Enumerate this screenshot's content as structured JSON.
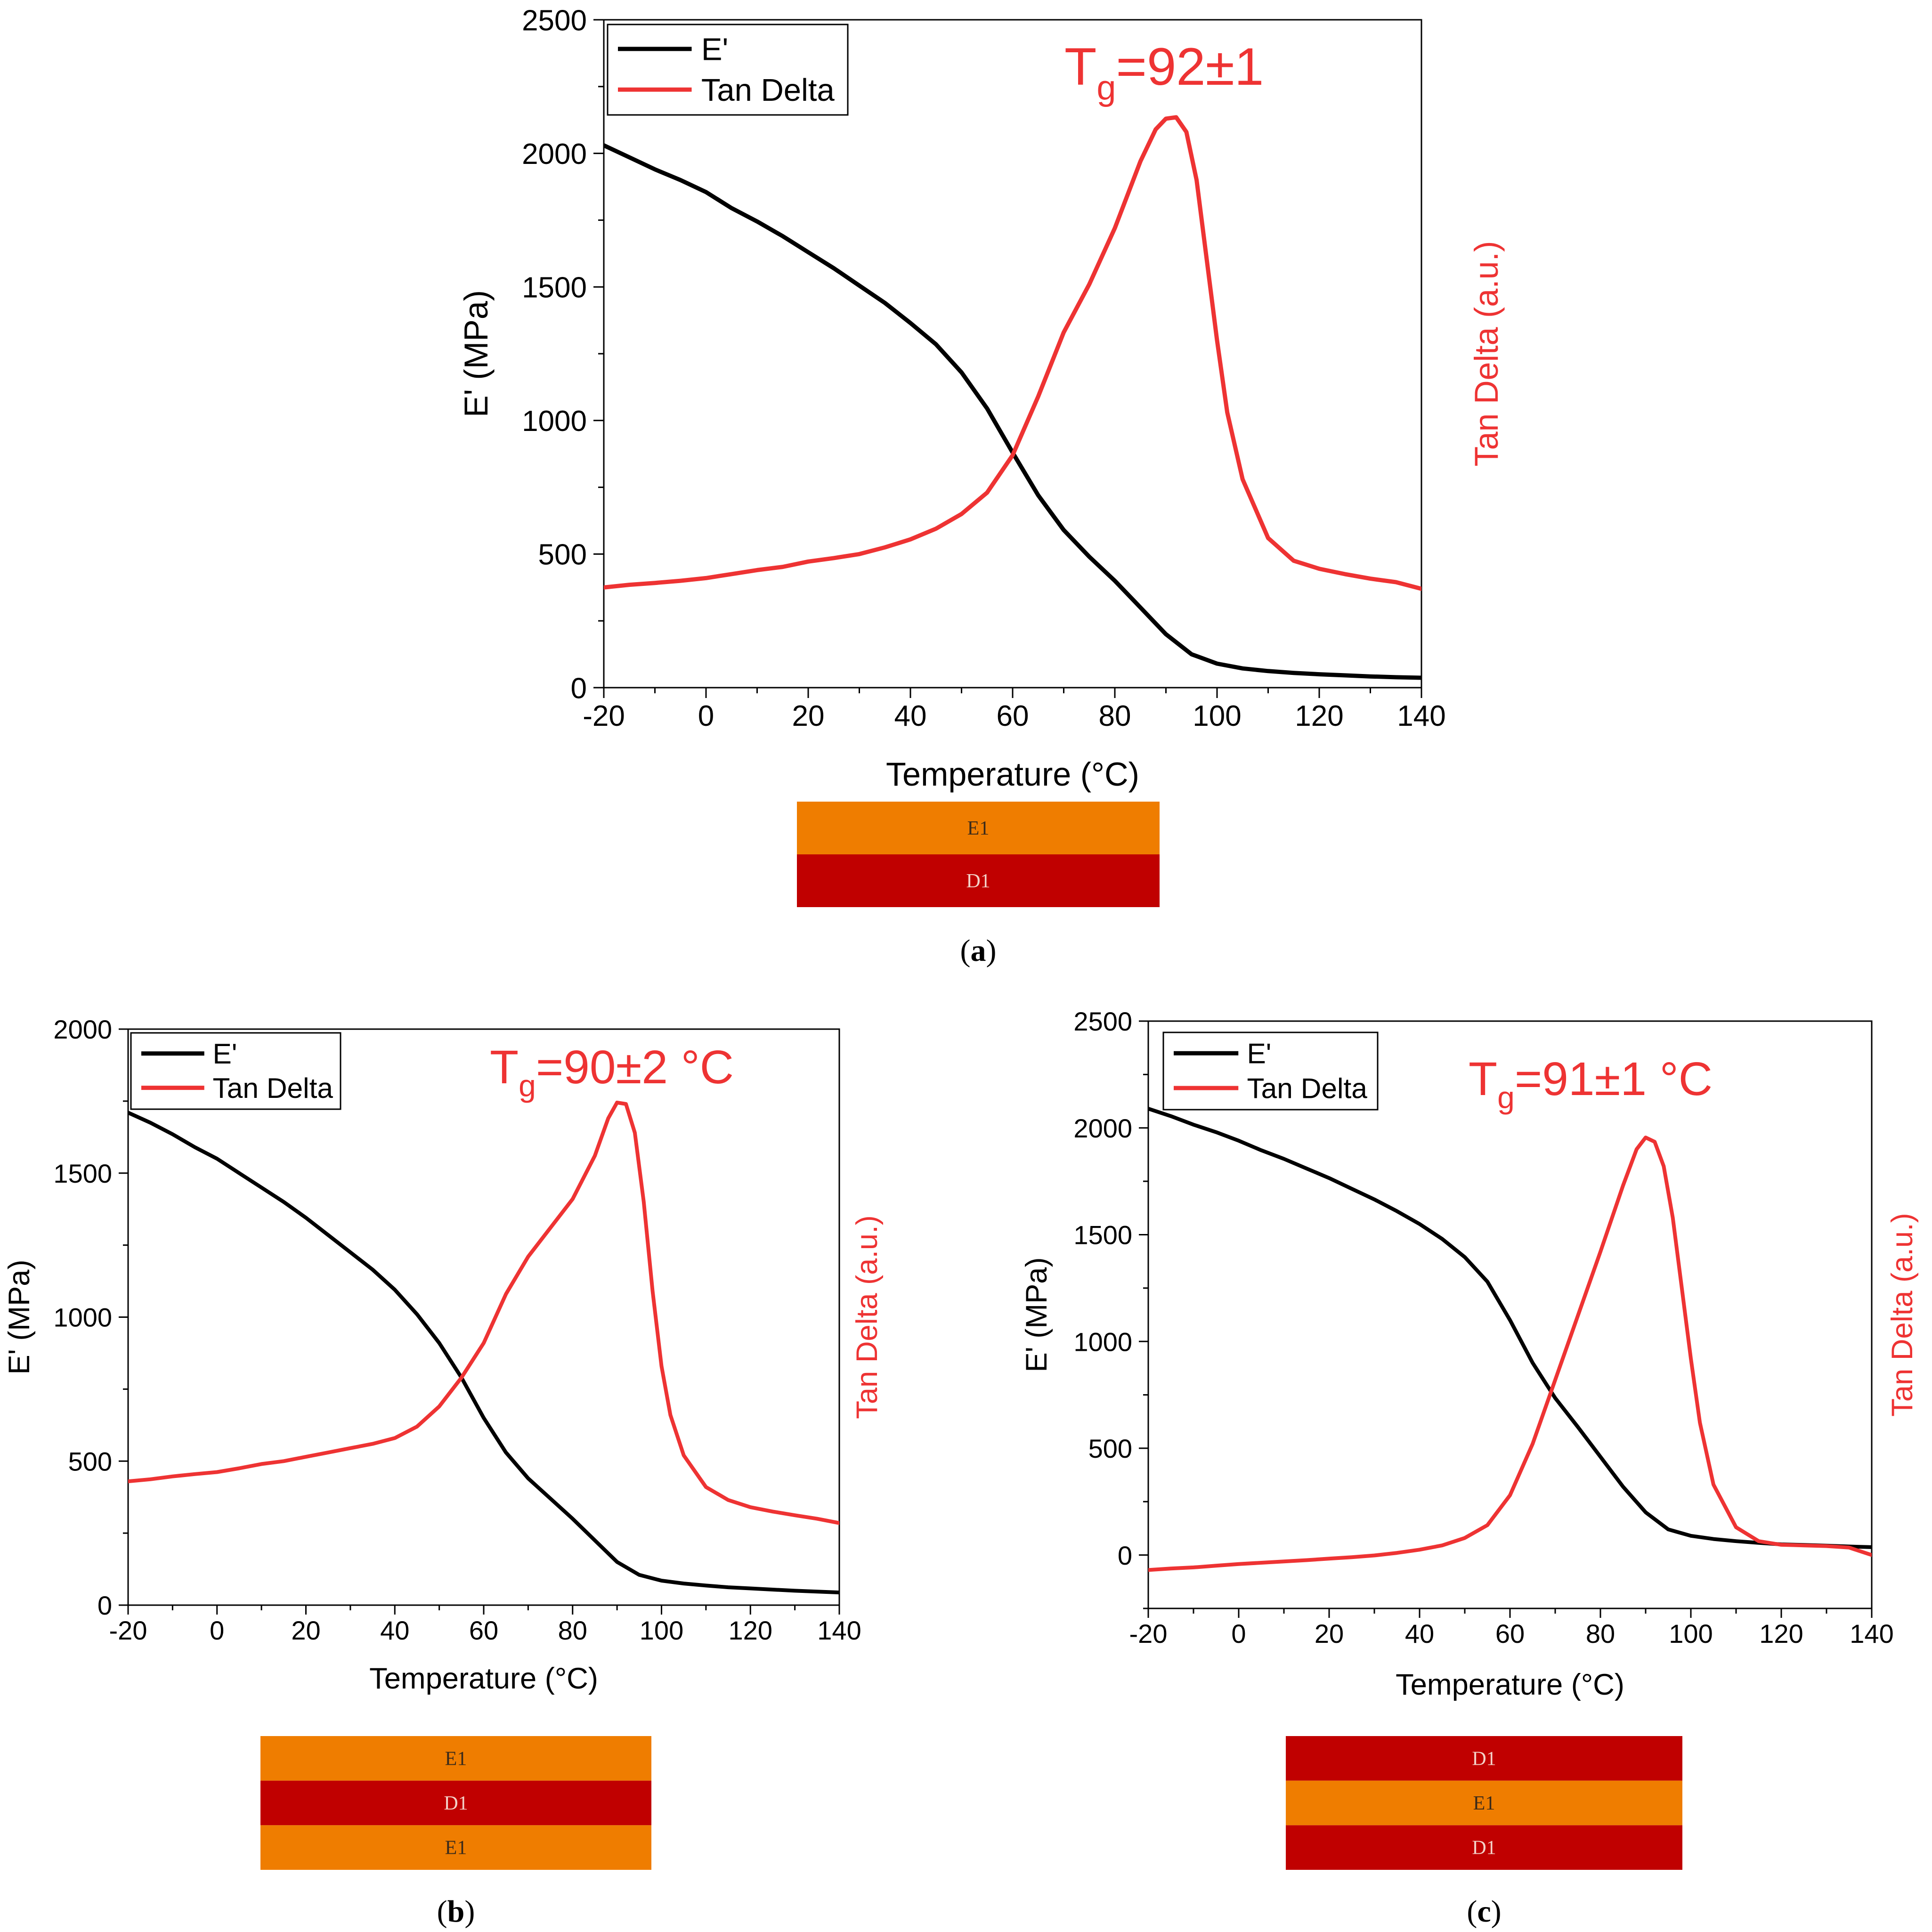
{
  "colors": {
    "e_prime": "#000000",
    "tan_delta": "#ee3333",
    "layer_E1": "#ef7d00",
    "layer_D1": "#c00000",
    "layer_E1_text": "#3a2a1a",
    "layer_D1_text": "#f3d2c8"
  },
  "layer_labels": {
    "E1": "E1",
    "D1": "D1"
  },
  "chart_data": [
    {
      "id": "a",
      "type": "line",
      "caption_letter": "a",
      "xlabel": "Temperature (°C)",
      "ylabel": "E' (MPa)",
      "y2label": "Tan Delta (a.u.)",
      "annotation": {
        "base": "T",
        "sub": "g",
        "rest": "=92±1"
      },
      "xlim": [
        -20,
        140
      ],
      "ylim": [
        0,
        2500
      ],
      "xticks": [
        -20,
        0,
        20,
        40,
        60,
        80,
        100,
        120,
        140
      ],
      "yticks": [
        0,
        500,
        1000,
        1500,
        2000,
        2500
      ],
      "tand_scale": [
        0,
        2500
      ],
      "legend": [
        "E'",
        "Tan Delta"
      ],
      "legend_position": "top-left",
      "layers": [
        "E1",
        "D1"
      ],
      "series": [
        {
          "name": "E'",
          "x": [
            -20,
            -15,
            -10,
            -5,
            0,
            5,
            10,
            15,
            20,
            25,
            30,
            35,
            40,
            45,
            50,
            55,
            60,
            65,
            70,
            75,
            80,
            85,
            90,
            95,
            100,
            105,
            110,
            115,
            120,
            125,
            130,
            135,
            140
          ],
          "values": [
            2030,
            1985,
            1940,
            1900,
            1855,
            1795,
            1745,
            1690,
            1630,
            1570,
            1505,
            1440,
            1365,
            1285,
            1180,
            1045,
            880,
            720,
            590,
            490,
            400,
            300,
            200,
            125,
            90,
            72,
            62,
            55,
            50,
            46,
            42,
            39,
            37
          ]
        },
        {
          "name": "Tan Delta",
          "x": [
            -20,
            -15,
            -10,
            -5,
            0,
            5,
            10,
            15,
            20,
            25,
            30,
            35,
            40,
            45,
            50,
            55,
            60,
            65,
            70,
            75,
            80,
            85,
            88,
            90,
            92,
            94,
            96,
            98,
            100,
            102,
            105,
            110,
            115,
            120,
            125,
            130,
            135,
            140
          ],
          "values": [
            375,
            385,
            392,
            400,
            410,
            425,
            440,
            452,
            472,
            485,
            500,
            525,
            555,
            595,
            650,
            730,
            870,
            1090,
            1330,
            1510,
            1720,
            1970,
            2090,
            2130,
            2135,
            2080,
            1900,
            1600,
            1300,
            1030,
            780,
            560,
            475,
            445,
            425,
            408,
            395,
            370
          ]
        }
      ]
    },
    {
      "id": "b",
      "type": "line",
      "caption_letter": "b",
      "xlabel": "Temperature (°C)",
      "ylabel": "E' (MPa)",
      "y2label": "Tan Delta (a.u.)",
      "annotation": {
        "base": "T",
        "sub": "g",
        "rest": "=90±2 °C"
      },
      "xlim": [
        -20,
        140
      ],
      "ylim": [
        0,
        2000
      ],
      "xticks": [
        -20,
        0,
        20,
        40,
        60,
        80,
        100,
        120,
        140
      ],
      "yticks": [
        0,
        500,
        1000,
        1500,
        2000
      ],
      "tand_scale": [
        0,
        2000
      ],
      "legend": [
        "E'",
        "Tan Delta"
      ],
      "legend_position": "top-left",
      "layers": [
        "E1",
        "D1",
        "E1"
      ],
      "series": [
        {
          "name": "E'",
          "x": [
            -20,
            -15,
            -10,
            -5,
            0,
            5,
            10,
            15,
            20,
            25,
            30,
            35,
            40,
            45,
            50,
            55,
            60,
            65,
            70,
            75,
            80,
            85,
            90,
            95,
            100,
            105,
            110,
            115,
            120,
            125,
            130,
            135,
            140
          ],
          "values": [
            1710,
            1675,
            1635,
            1590,
            1550,
            1500,
            1450,
            1400,
            1345,
            1285,
            1225,
            1165,
            1095,
            1010,
            910,
            790,
            650,
            530,
            440,
            370,
            300,
            225,
            150,
            105,
            85,
            75,
            68,
            62,
            58,
            54,
            50,
            47,
            44
          ]
        },
        {
          "name": "Tan Delta",
          "x": [
            -20,
            -15,
            -10,
            -5,
            0,
            5,
            10,
            15,
            20,
            25,
            30,
            35,
            40,
            45,
            50,
            55,
            60,
            65,
            70,
            75,
            80,
            85,
            88,
            90,
            92,
            94,
            96,
            98,
            100,
            102,
            105,
            110,
            115,
            120,
            125,
            130,
            135,
            140
          ],
          "values": [
            430,
            437,
            447,
            455,
            462,
            475,
            490,
            500,
            515,
            530,
            545,
            560,
            580,
            620,
            690,
            790,
            910,
            1080,
            1210,
            1310,
            1410,
            1560,
            1690,
            1745,
            1740,
            1640,
            1400,
            1090,
            830,
            660,
            520,
            410,
            365,
            340,
            325,
            312,
            300,
            285
          ]
        }
      ]
    },
    {
      "id": "c",
      "type": "line",
      "caption_letter": "c",
      "xlabel": "Temperature (°C)",
      "ylabel": "E' (MPa)",
      "y2label": "Tan Delta (a.u.)",
      "annotation": {
        "base": "T",
        "sub": "g",
        "rest": "=91±1 °C"
      },
      "xlim": [
        -20,
        140
      ],
      "ylim": [
        -250,
        2500
      ],
      "xticks": [
        -20,
        0,
        20,
        40,
        60,
        80,
        100,
        120,
        140
      ],
      "yticks": [
        0,
        500,
        1000,
        1500,
        2000,
        2500
      ],
      "tand_scale": [
        -250,
        2500
      ],
      "legend": [
        "E'",
        "Tan Delta"
      ],
      "legend_position": "top-left",
      "layers": [
        "D1",
        "E1",
        "D1"
      ],
      "series": [
        {
          "name": "E'",
          "x": [
            -20,
            -15,
            -10,
            -5,
            0,
            5,
            10,
            15,
            20,
            25,
            30,
            35,
            40,
            45,
            50,
            55,
            60,
            65,
            70,
            75,
            80,
            85,
            90,
            95,
            100,
            105,
            110,
            115,
            120,
            125,
            130,
            135,
            140
          ],
          "values": [
            2090,
            2055,
            2015,
            1980,
            1940,
            1895,
            1855,
            1810,
            1765,
            1715,
            1665,
            1610,
            1550,
            1480,
            1395,
            1280,
            1100,
            900,
            735,
            600,
            460,
            320,
            200,
            120,
            90,
            75,
            65,
            57,
            50,
            47,
            44,
            40,
            37
          ]
        },
        {
          "name": "Tan Delta",
          "x": [
            -20,
            -15,
            -10,
            -5,
            0,
            5,
            10,
            15,
            20,
            25,
            30,
            35,
            40,
            45,
            50,
            55,
            60,
            65,
            70,
            75,
            80,
            85,
            88,
            90,
            92,
            94,
            96,
            98,
            100,
            102,
            105,
            110,
            115,
            120,
            125,
            130,
            135,
            140
          ],
          "values": [
            -70,
            -63,
            -58,
            -50,
            -42,
            -36,
            -30,
            -24,
            -17,
            -10,
            -2,
            10,
            25,
            45,
            80,
            140,
            280,
            520,
            820,
            1120,
            1420,
            1730,
            1900,
            1955,
            1935,
            1820,
            1580,
            1250,
            920,
            620,
            330,
            130,
            65,
            48,
            45,
            42,
            35,
            0
          ]
        }
      ]
    }
  ]
}
